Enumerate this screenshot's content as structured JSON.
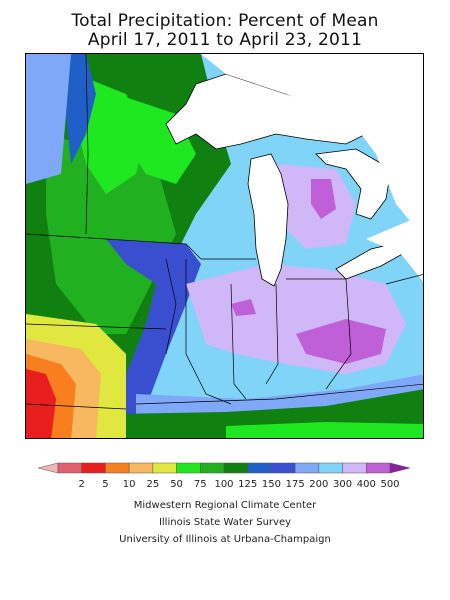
{
  "title_line1": "Total Precipitation: Percent of Mean",
  "title_line2": "April 17, 2011 to April 23, 2011",
  "legend": {
    "labels": [
      "2",
      "5",
      "10",
      "25",
      "50",
      "75",
      "100",
      "125",
      "150",
      "175",
      "200",
      "300",
      "400",
      "500"
    ],
    "colors": [
      "#f6b5b5",
      "#e06070",
      "#e81e1e",
      "#f87f1e",
      "#f8b860",
      "#e0e840",
      "#20e820",
      "#20b020",
      "#108010",
      "#1e60c8",
      "#3a4fd0",
      "#7fa8f8",
      "#80d4f8",
      "#d0b8f8",
      "#c060d8",
      "#8a1fa0"
    ]
  },
  "credits": {
    "line1": "Midwestern Regional Climate Center",
    "line2": "Illinois State Water Survey",
    "line3": "University of Illinois at Urbana-Champaign"
  }
}
